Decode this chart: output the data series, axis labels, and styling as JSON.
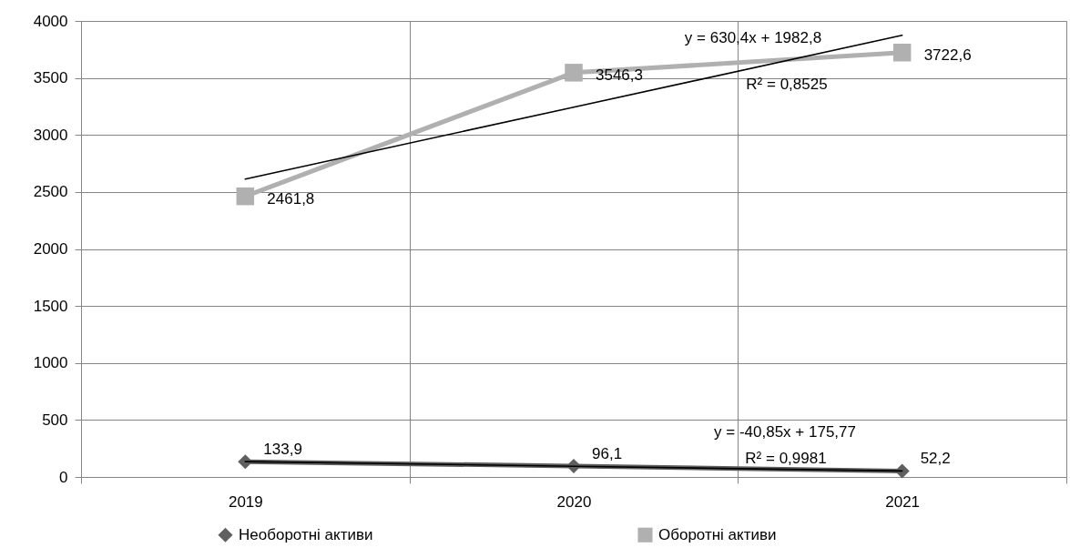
{
  "chart_data": {
    "type": "line",
    "categories": [
      "2019",
      "2020",
      "2021"
    ],
    "series": [
      {
        "name": "Необоротні активи",
        "color": "#5f5f5f",
        "marker": "diamond",
        "values": [
          133.9,
          96.1,
          52.2
        ],
        "value_labels": [
          "133,9",
          "96,1",
          "52,2"
        ]
      },
      {
        "name": "Оборотні активи",
        "color": "#b0b0b0",
        "marker": "square",
        "values": [
          2461.8,
          3546.3,
          3722.6
        ],
        "value_labels": [
          "2461,8",
          "3546,3",
          "3722,6"
        ]
      },
      {
        "type": "line",
        "color": "#000000",
        "marker": "none",
        "values": [
          135,
          94,
          53
        ]
      },
      {
        "type": "line",
        "color": "#000000",
        "marker": "none",
        "values": [
          2613,
          3244,
          3874
        ]
      }
    ],
    "ylim": [
      0,
      4000
    ],
    "yticks": [
      0,
      500,
      1000,
      1500,
      2000,
      2500,
      3000,
      3500,
      4000
    ],
    "grid": true,
    "legend": "bottom",
    "line_style": "solid",
    "annotations": [
      "y = 630,4x + 1982,8",
      "R² = 0,8525",
      "y = -40,85x + 175,77",
      "R² = 0,9981"
    ]
  }
}
